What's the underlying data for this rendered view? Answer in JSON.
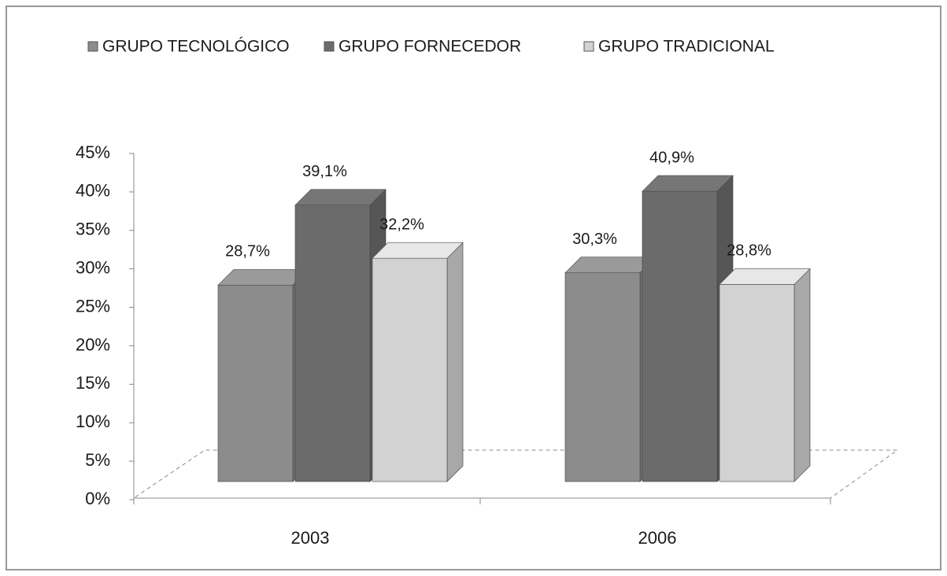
{
  "chart_data": {
    "type": "bar3d",
    "categories": [
      "2003",
      "2006"
    ],
    "series": [
      {
        "name": "GRUPO TECNOLÓGICO",
        "color": "#8c8c8c",
        "values": [
          28.7,
          30.3
        ],
        "value_labels": [
          "28,7%",
          "30,3%"
        ]
      },
      {
        "name": "GRUPO FORNECEDOR",
        "color": "#6b6b6b",
        "values": [
          39.1,
          40.9
        ],
        "value_labels": [
          "39,1%",
          "40,9%"
        ]
      },
      {
        "name": "GRUPO TRADICIONAL",
        "color": "#d2d2d2",
        "values": [
          32.2,
          28.8
        ],
        "value_labels": [
          "32,2%",
          "28,8%"
        ]
      }
    ],
    "ylim": [
      0,
      45
    ],
    "yticks": [
      {
        "value": 0,
        "label": "0%"
      },
      {
        "value": 5,
        "label": "5%"
      },
      {
        "value": 10,
        "label": "10%"
      },
      {
        "value": 15,
        "label": "15%"
      },
      {
        "value": 20,
        "label": "20%"
      },
      {
        "value": 25,
        "label": "25%"
      },
      {
        "value": 30,
        "label": "30%"
      },
      {
        "value": 35,
        "label": "35%"
      },
      {
        "value": 40,
        "label": "40%"
      },
      {
        "value": 45,
        "label": "45%"
      }
    ],
    "legend": "top"
  }
}
